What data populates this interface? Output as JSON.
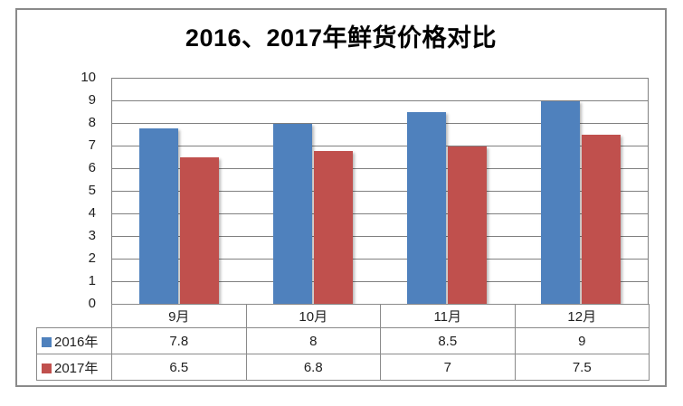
{
  "chart_data": {
    "type": "bar",
    "title": "2016、2017年鲜货价格对比",
    "categories": [
      "9月",
      "10月",
      "11月",
      "12月"
    ],
    "series": [
      {
        "name": "2016年",
        "color": "#4F81BD",
        "values": [
          7.8,
          8,
          8.5,
          9
        ]
      },
      {
        "name": "2017年",
        "color": "#C0504D",
        "values": [
          6.5,
          6.8,
          7,
          7.5
        ]
      }
    ],
    "xlabel": "",
    "ylabel": "",
    "ylim": [
      0,
      10
    ],
    "yticks": [
      0,
      1,
      2,
      3,
      4,
      5,
      6,
      7,
      8,
      9,
      10
    ],
    "grid": "horizontal",
    "legend_position": "data-table-left",
    "data_table_shown": true,
    "colors": {
      "series_2016": "#4F81BD",
      "series_2017": "#C0504D",
      "gridline": "#808080",
      "table_border": "#8a8a8a",
      "outer_border": "#8a8a8a",
      "text": "#1f1f1f",
      "background": "#ffffff"
    }
  }
}
